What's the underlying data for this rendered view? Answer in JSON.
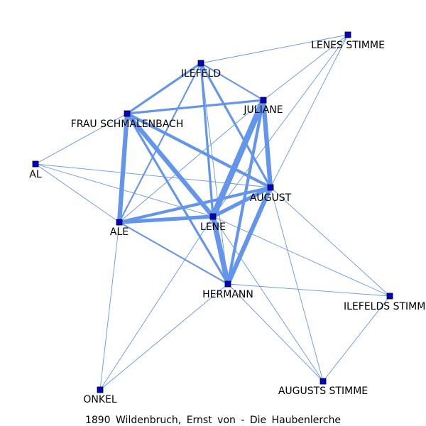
{
  "caption": "1890 Wildenbruch, Ernst von - Die Haubenlerche",
  "colors": {
    "edge": "#6495ed",
    "node_fill": "#0000cd",
    "node_stroke": "#000000",
    "background": "#ffffff"
  },
  "nodes": [
    {
      "id": "lenes_stimme",
      "label": "LENES STIMME"
    },
    {
      "id": "ilefeld",
      "label": "ILEFELD"
    },
    {
      "id": "juliane",
      "label": "JULIANE"
    },
    {
      "id": "frau_schmalenbach",
      "label": "FRAU SCHMALENBACH"
    },
    {
      "id": "al",
      "label": "AL"
    },
    {
      "id": "august",
      "label": "AUGUST"
    },
    {
      "id": "lene",
      "label": "LENE"
    },
    {
      "id": "ale",
      "label": "ALE"
    },
    {
      "id": "hermann",
      "label": "HERMANN"
    },
    {
      "id": "ilefelds_stimme",
      "label": "ILEFELDS STIMME"
    },
    {
      "id": "augusts_stimme",
      "label": "AUGUSTS STIMME"
    },
    {
      "id": "onkel",
      "label": "ONKEL"
    }
  ],
  "edges": [
    {
      "source": "juliane",
      "target": "lene",
      "weight": 8
    },
    {
      "source": "lene",
      "target": "hermann",
      "weight": 7
    },
    {
      "source": "juliane",
      "target": "august",
      "weight": 6
    },
    {
      "source": "august",
      "target": "hermann",
      "weight": 6
    },
    {
      "source": "frau_schmalenbach",
      "target": "ale",
      "weight": 6
    },
    {
      "source": "frau_schmalenbach",
      "target": "lene",
      "weight": 6
    },
    {
      "source": "ale",
      "target": "lene",
      "weight": 5
    },
    {
      "source": "august",
      "target": "lene",
      "weight": 5
    },
    {
      "source": "ale",
      "target": "august",
      "weight": 4
    },
    {
      "source": "frau_schmalenbach",
      "target": "august",
      "weight": 4
    },
    {
      "source": "juliane",
      "target": "hermann",
      "weight": 4
    },
    {
      "source": "ilefeld",
      "target": "lene",
      "weight": 3
    },
    {
      "source": "ilefeld",
      "target": "august",
      "weight": 3
    },
    {
      "source": "ilefeld",
      "target": "frau_schmalenbach",
      "weight": 3
    },
    {
      "source": "juliane",
      "target": "frau_schmalenbach",
      "weight": 3
    },
    {
      "source": "frau_schmalenbach",
      "target": "hermann",
      "weight": 3
    },
    {
      "source": "ale",
      "target": "hermann",
      "weight": 2
    },
    {
      "source": "ilefeld",
      "target": "juliane",
      "weight": 2
    },
    {
      "source": "ilefeld",
      "target": "ale",
      "weight": 2
    },
    {
      "source": "ilefeld",
      "target": "hermann",
      "weight": 1
    },
    {
      "source": "juliane",
      "target": "ale",
      "weight": 1
    },
    {
      "source": "lenes_stimme",
      "target": "ilefeld",
      "weight": 1
    },
    {
      "source": "lenes_stimme",
      "target": "juliane",
      "weight": 1
    },
    {
      "source": "lenes_stimme",
      "target": "august",
      "weight": 1
    },
    {
      "source": "lenes_stimme",
      "target": "lene",
      "weight": 1
    },
    {
      "source": "al",
      "target": "frau_schmalenbach",
      "weight": 1
    },
    {
      "source": "al",
      "target": "ale",
      "weight": 1
    },
    {
      "source": "al",
      "target": "august",
      "weight": 1
    },
    {
      "source": "al",
      "target": "lene",
      "weight": 1
    },
    {
      "source": "august",
      "target": "ilefelds_stimme",
      "weight": 1
    },
    {
      "source": "august",
      "target": "augusts_stimme",
      "weight": 1
    },
    {
      "source": "lene",
      "target": "ilefelds_stimme",
      "weight": 1
    },
    {
      "source": "lene",
      "target": "augusts_stimme",
      "weight": 1
    },
    {
      "source": "lene",
      "target": "onkel",
      "weight": 1
    },
    {
      "source": "hermann",
      "target": "ilefelds_stimme",
      "weight": 1
    },
    {
      "source": "hermann",
      "target": "augusts_stimme",
      "weight": 1
    },
    {
      "source": "hermann",
      "target": "onkel",
      "weight": 1
    },
    {
      "source": "ale",
      "target": "onkel",
      "weight": 1
    },
    {
      "source": "ilefelds_stimme",
      "target": "augusts_stimme",
      "weight": 1
    }
  ]
}
